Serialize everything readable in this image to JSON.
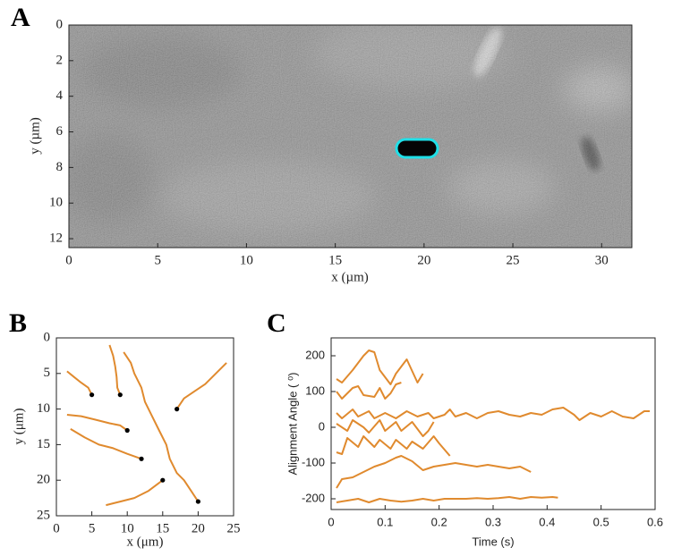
{
  "chart_data": [
    {
      "type": "image",
      "panel_label": "A",
      "xlabel": "x (µm)",
      "ylabel": "y (µm)",
      "xlim": [
        0,
        31.7
      ],
      "ylim": [
        12.5,
        0
      ],
      "xticks": [
        0,
        5,
        10,
        15,
        20,
        25,
        30
      ],
      "yticks": [
        0,
        2,
        4,
        6,
        8,
        10,
        12
      ]
    },
    {
      "type": "line",
      "panel_label": "B",
      "xlabel": "x (μm)",
      "ylabel": "y (μm)",
      "color": "#e08a2e",
      "xlim": [
        0,
        25
      ],
      "ylim": [
        25,
        0
      ],
      "xticks": [
        0,
        5,
        10,
        15,
        20,
        25
      ],
      "yticks": [
        0,
        5,
        10,
        15,
        20,
        25
      ],
      "series": [
        {
          "x": [
            1.5,
            2.5,
            3.5,
            4.5,
            5
          ],
          "values": [
            4.7,
            5.5,
            6.3,
            7,
            8
          ]
        },
        {
          "x": [
            7.5,
            8,
            8.3,
            8.5,
            8.6,
            9
          ],
          "values": [
            1,
            2.5,
            4,
            5.5,
            7,
            8
          ]
        },
        {
          "x": [
            9.5,
            10.5,
            11,
            12,
            12.5,
            13.5,
            14.5,
            15.5,
            16,
            17,
            18,
            19,
            20
          ],
          "values": [
            2,
            3.5,
            5,
            7,
            9,
            11,
            13,
            15,
            17,
            19,
            20,
            21.5,
            23
          ]
        },
        {
          "x": [
            24,
            22.5,
            21,
            19.5,
            18,
            17
          ],
          "values": [
            3.5,
            5,
            6.5,
            7.5,
            8.5,
            10
          ]
        },
        {
          "x": [
            1.5,
            3.5,
            5.5,
            7.5,
            9,
            10
          ],
          "values": [
            10.8,
            11,
            11.5,
            12,
            12.3,
            13
          ]
        },
        {
          "x": [
            2,
            4,
            6,
            8,
            10,
            12
          ],
          "values": [
            12.8,
            14,
            15,
            15.5,
            16.3,
            17
          ]
        },
        {
          "x": [
            7,
            9,
            11,
            13,
            15
          ],
          "values": [
            23.5,
            23,
            22.5,
            21.5,
            20
          ]
        }
      ],
      "endpoints": {
        "x": [
          5,
          9,
          20,
          17,
          10,
          12,
          15
        ],
        "y": [
          8,
          8,
          23,
          10,
          13,
          17,
          20
        ]
      }
    },
    {
      "type": "line",
      "panel_label": "C",
      "xlabel": "Time (s)",
      "ylabel": "Alignment Angle ( ⁰)",
      "color": "#e08a2e",
      "xlim": [
        0,
        0.6
      ],
      "ylim": [
        -230,
        250
      ],
      "xticks": [
        0,
        0.1,
        0.2,
        0.3,
        0.4,
        0.5,
        0.6
      ],
      "yticks": [
        -200,
        -100,
        0,
        100,
        200
      ],
      "series": [
        {
          "x": [
            0.01,
            0.02,
            0.04,
            0.06,
            0.07,
            0.08,
            0.09,
            0.11,
            0.12,
            0.14,
            0.16,
            0.17
          ],
          "values": [
            135,
            125,
            160,
            200,
            215,
            210,
            160,
            120,
            150,
            190,
            125,
            150
          ]
        },
        {
          "x": [
            0.01,
            0.02,
            0.04,
            0.05,
            0.06,
            0.08,
            0.09,
            0.1,
            0.11,
            0.12,
            0.13
          ],
          "values": [
            100,
            80,
            110,
            115,
            90,
            85,
            110,
            80,
            95,
            120,
            125
          ]
        },
        {
          "x": [
            0.01,
            0.02,
            0.04,
            0.05,
            0.07,
            0.08,
            0.1,
            0.12,
            0.14,
            0.16,
            0.18,
            0.19,
            0.21,
            0.22,
            0.23,
            0.25,
            0.27,
            0.29,
            0.31,
            0.33,
            0.35,
            0.37,
            0.39,
            0.41,
            0.43,
            0.45,
            0.46,
            0.48,
            0.5,
            0.52,
            0.54,
            0.56,
            0.58,
            0.59
          ],
          "values": [
            40,
            25,
            50,
            30,
            45,
            25,
            40,
            25,
            45,
            30,
            40,
            25,
            35,
            50,
            30,
            40,
            25,
            40,
            45,
            35,
            30,
            40,
            35,
            50,
            55,
            35,
            20,
            40,
            30,
            45,
            30,
            25,
            45,
            45
          ]
        },
        {
          "x": [
            0.01,
            0.03,
            0.04,
            0.06,
            0.07,
            0.09,
            0.1,
            0.12,
            0.13,
            0.15,
            0.17,
            0.18,
            0.19
          ],
          "values": [
            10,
            -10,
            20,
            0,
            -15,
            20,
            -10,
            15,
            -10,
            15,
            -25,
            -10,
            15
          ]
        },
        {
          "x": [
            0.01,
            0.02,
            0.03,
            0.05,
            0.06,
            0.08,
            0.09,
            0.11,
            0.12,
            0.14,
            0.15,
            0.17,
            0.19,
            0.2,
            0.22
          ],
          "values": [
            -70,
            -75,
            -30,
            -55,
            -25,
            -55,
            -35,
            -60,
            -35,
            -60,
            -40,
            -60,
            -25,
            -45,
            -80
          ]
        },
        {
          "x": [
            0.01,
            0.02,
            0.04,
            0.06,
            0.08,
            0.1,
            0.12,
            0.13,
            0.15,
            0.17,
            0.19,
            0.21,
            0.23,
            0.25,
            0.27,
            0.29,
            0.31,
            0.33,
            0.35,
            0.37
          ],
          "values": [
            -170,
            -145,
            -140,
            -125,
            -110,
            -100,
            -85,
            -80,
            -95,
            -120,
            -110,
            -105,
            -100,
            -105,
            -110,
            -105,
            -110,
            -115,
            -110,
            -125
          ]
        },
        {
          "x": [
            0.01,
            0.03,
            0.05,
            0.07,
            0.09,
            0.11,
            0.13,
            0.15,
            0.17,
            0.19,
            0.21,
            0.23,
            0.25,
            0.27,
            0.29,
            0.31,
            0.33,
            0.35,
            0.37,
            0.39,
            0.41,
            0.42
          ],
          "values": [
            -210,
            -205,
            -200,
            -210,
            -200,
            -205,
            -208,
            -205,
            -200,
            -205,
            -200,
            -200,
            -200,
            -198,
            -200,
            -198,
            -195,
            -200,
            -195,
            -197,
            -195,
            -197
          ]
        }
      ]
    }
  ]
}
